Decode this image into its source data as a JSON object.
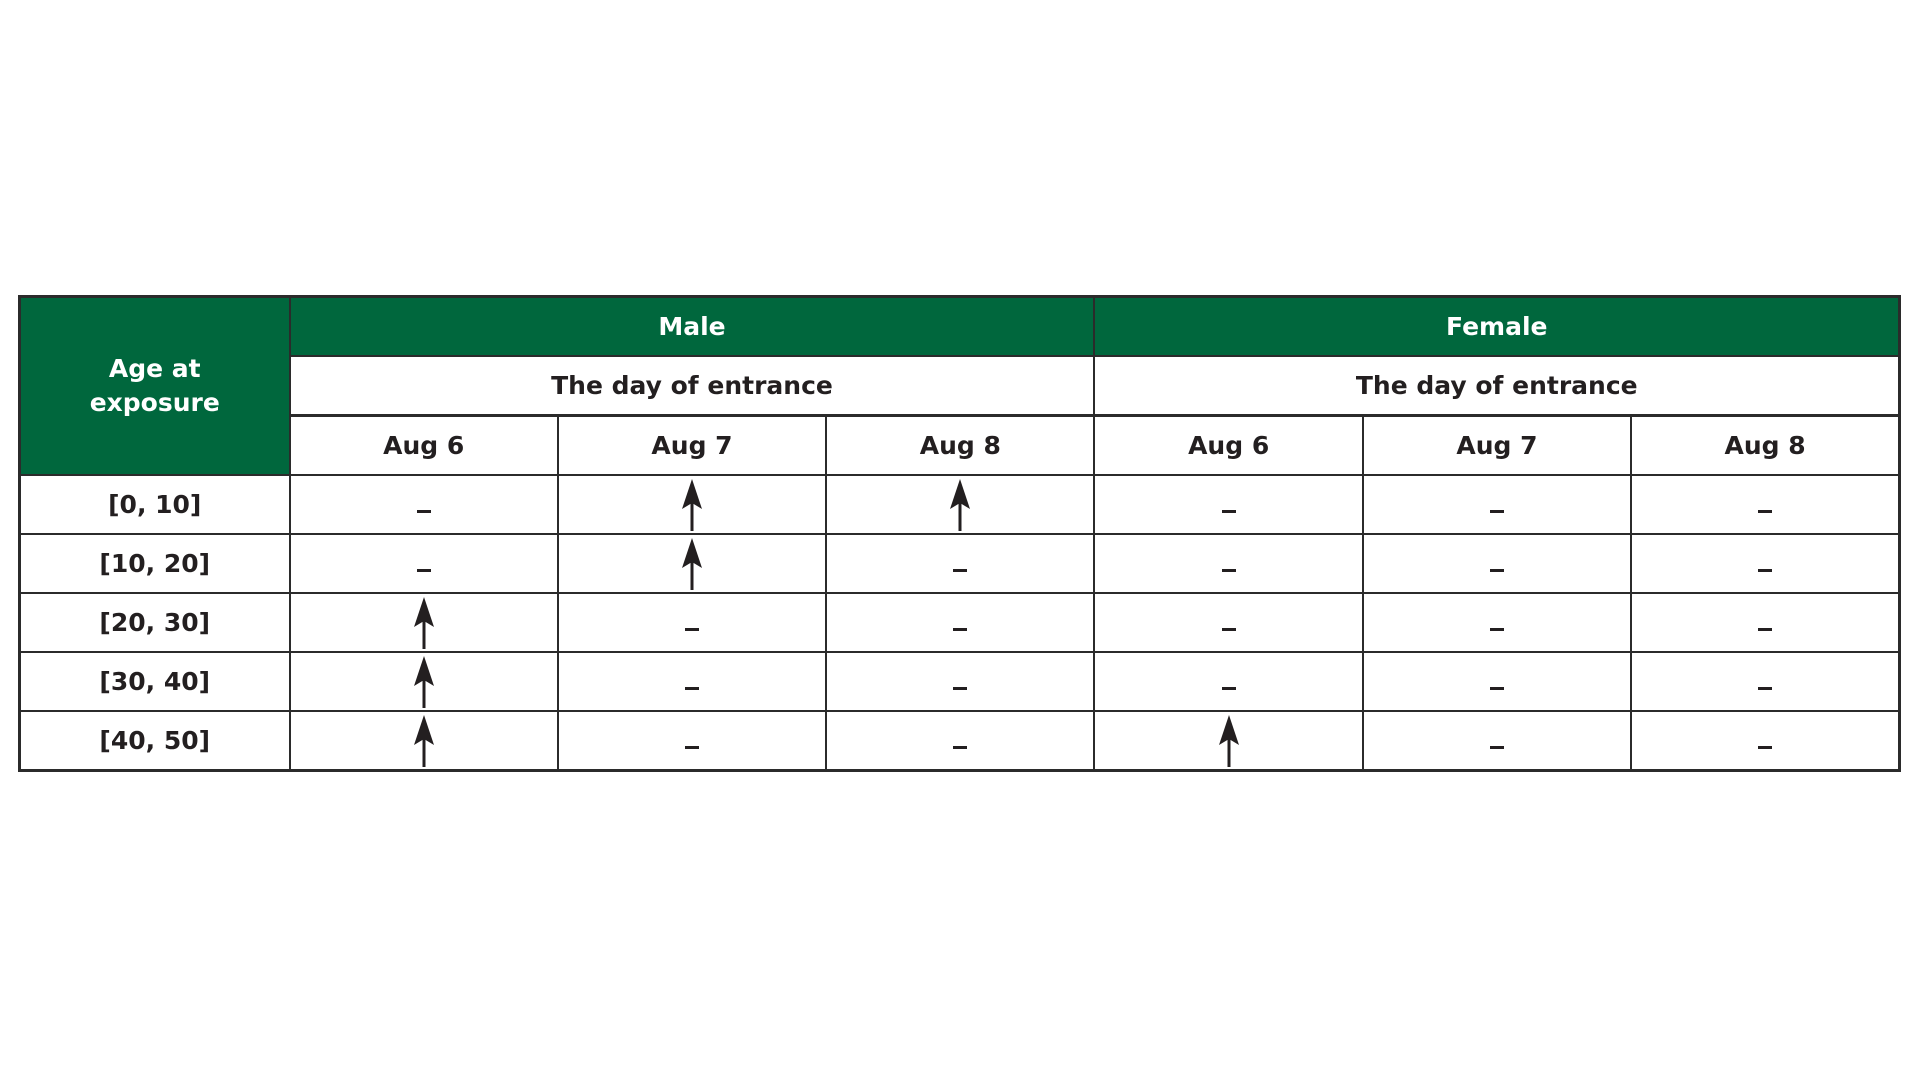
{
  "header": {
    "age_label": "Age at exposure",
    "groups": [
      {
        "label": "Male",
        "sublabel": "The day of entrance"
      },
      {
        "label": "Female",
        "sublabel": "The day of entrance"
      }
    ],
    "days": [
      "Aug 6",
      "Aug 7",
      "Aug 8",
      "Aug 6",
      "Aug 7",
      "Aug 8"
    ]
  },
  "legend_symbols": {
    "up": "arrow-up-icon",
    "none": "dash"
  },
  "colors": {
    "header_green": "#00673d"
  },
  "rows": [
    {
      "age": "[0, 10]",
      "cells": [
        "none",
        "up",
        "up",
        "none",
        "none",
        "none"
      ]
    },
    {
      "age": "[10, 20]",
      "cells": [
        "none",
        "up",
        "none",
        "none",
        "none",
        "none"
      ]
    },
    {
      "age": "[20, 30]",
      "cells": [
        "up",
        "none",
        "none",
        "none",
        "none",
        "none"
      ]
    },
    {
      "age": "[30, 40]",
      "cells": [
        "up",
        "none",
        "none",
        "none",
        "none",
        "none"
      ]
    },
    {
      "age": "[40, 50]",
      "cells": [
        "up",
        "none",
        "none",
        "up",
        "none",
        "none"
      ]
    }
  ]
}
